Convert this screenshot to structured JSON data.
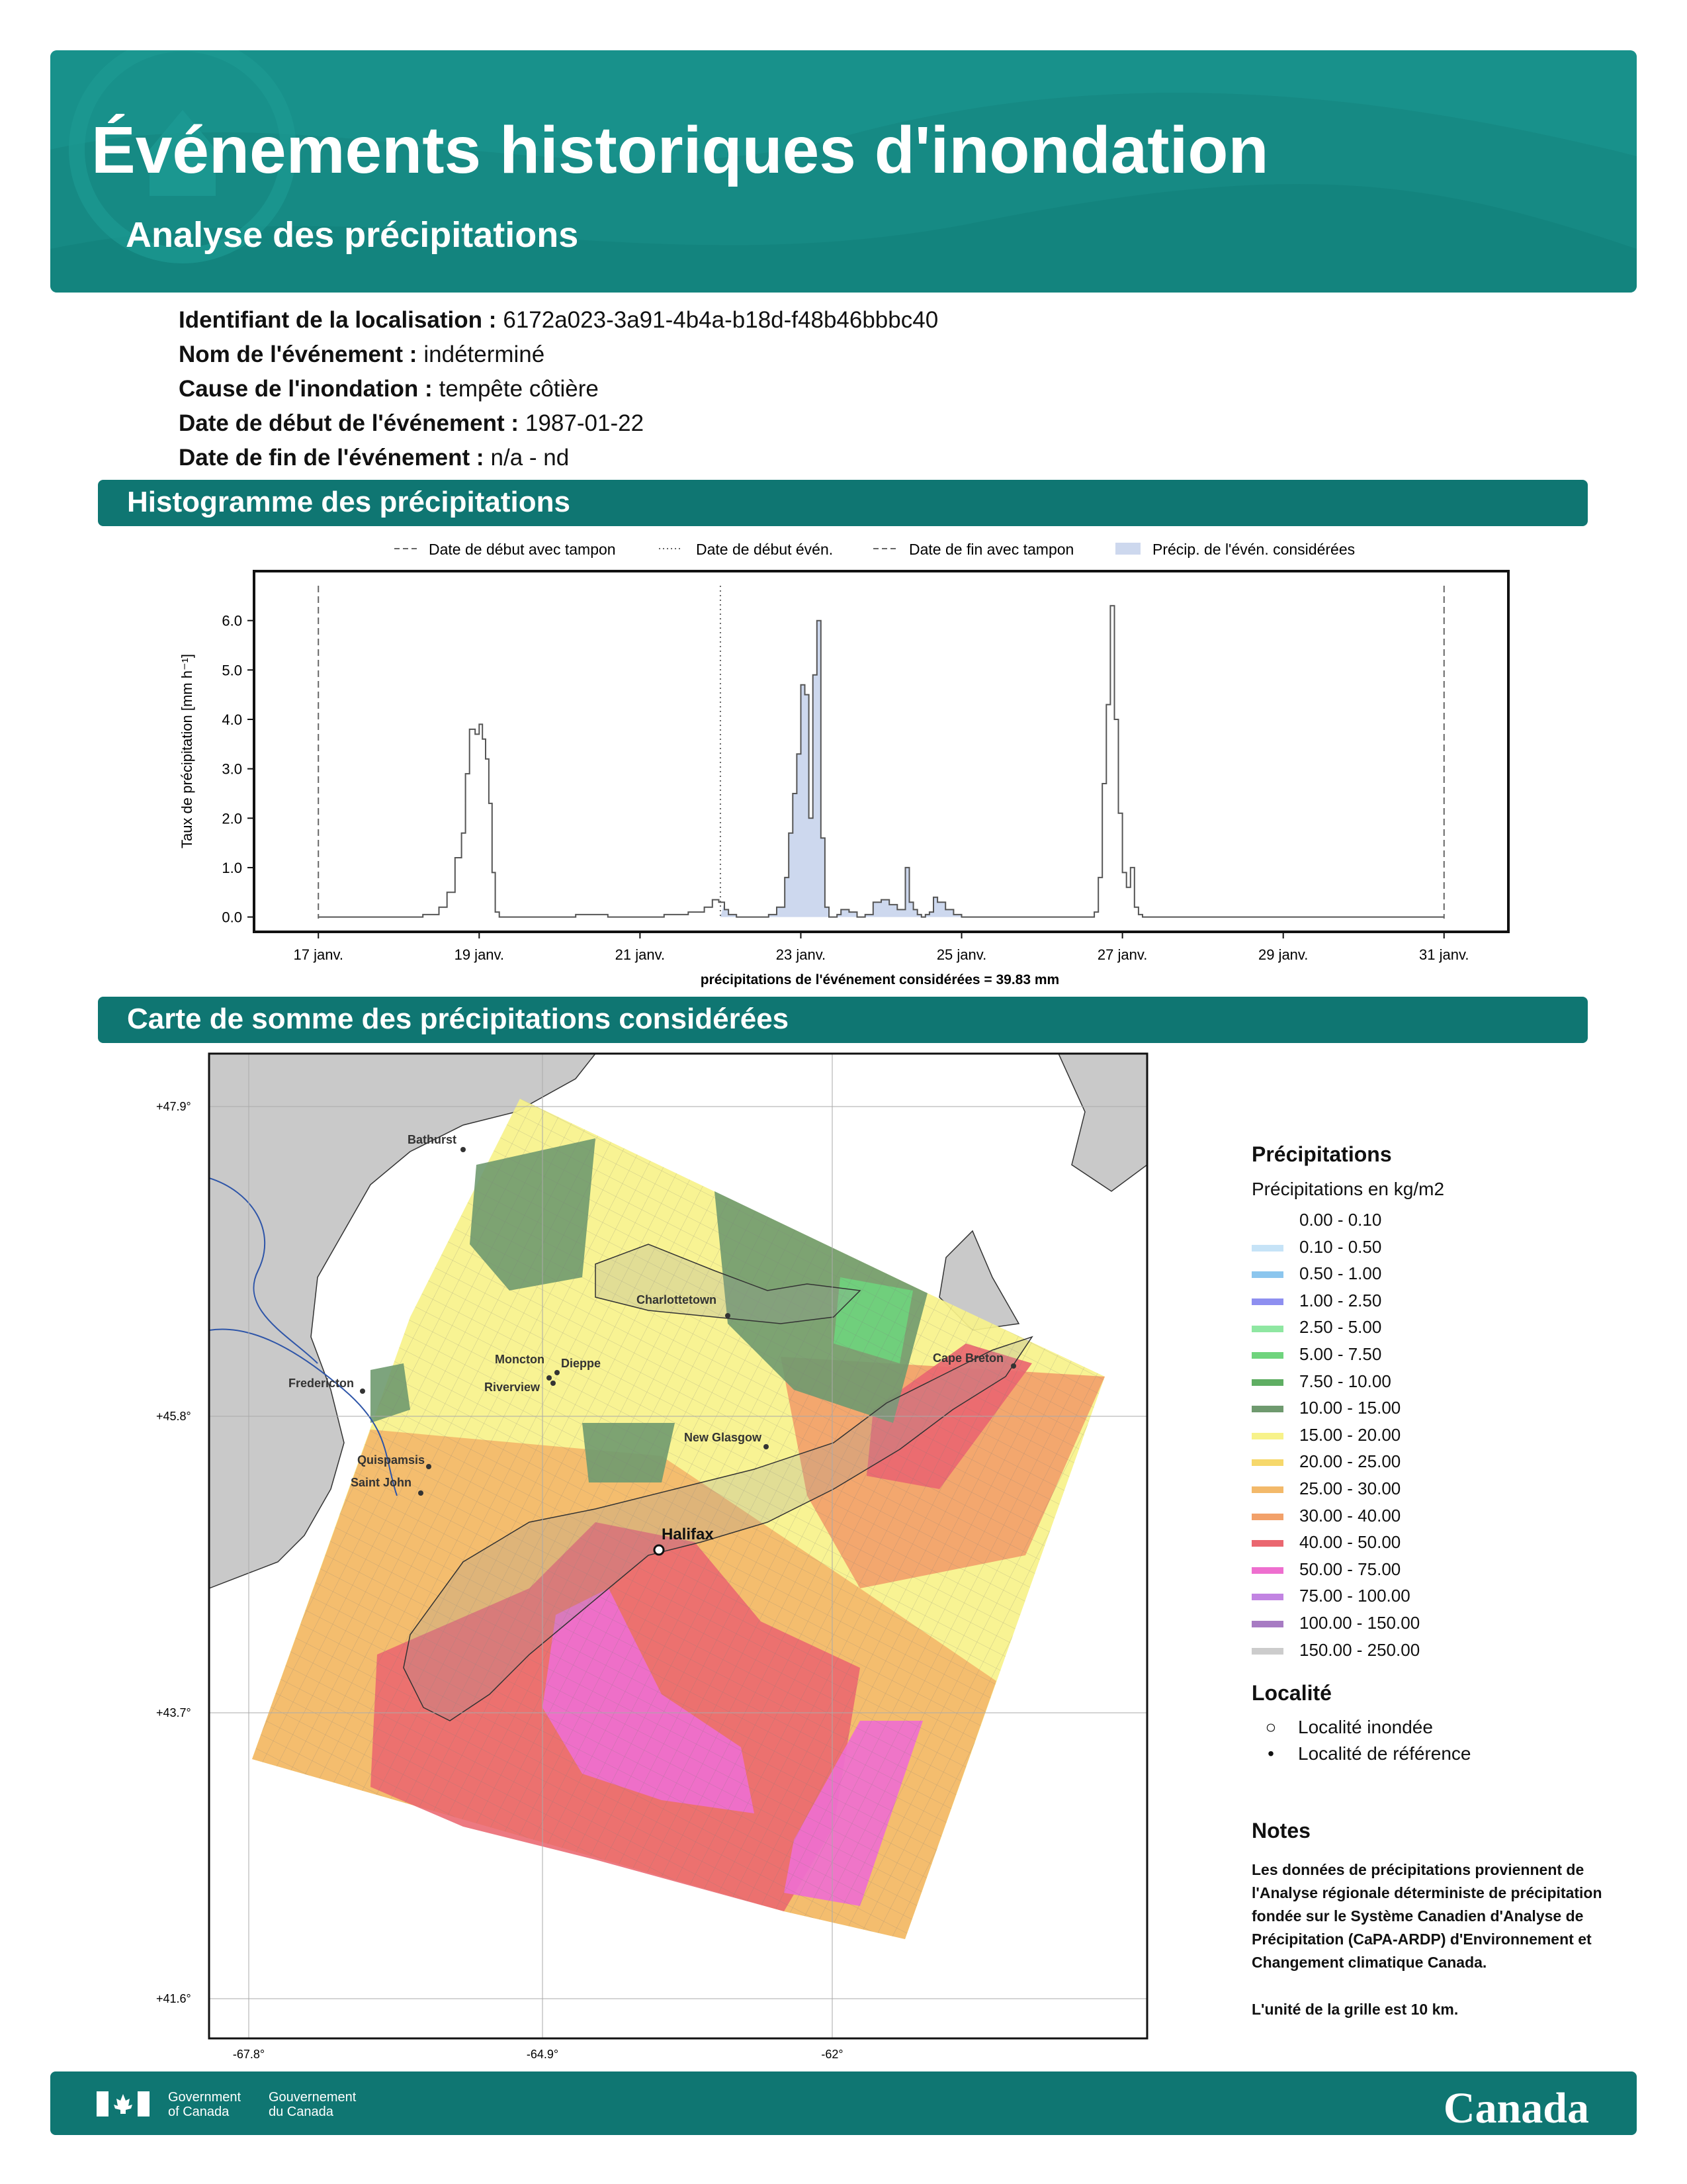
{
  "header": {
    "title": "Événements historiques d'inondation",
    "subtitle": "Analyse des précipitations"
  },
  "event": {
    "rows": [
      {
        "label": "Identifiant de la localisation :",
        "value": "6172a023-3a91-4b4a-b18d-f48b46bbbc40"
      },
      {
        "label": "Nom de l'événement :",
        "value": "indéterminé"
      },
      {
        "label": "Cause de l'inondation :",
        "value": "tempête côtière"
      },
      {
        "label": "Date de début de l'événement :",
        "value": "1987-01-22"
      },
      {
        "label": "Date de fin de l'événement :",
        "value": "n/a - nd"
      }
    ]
  },
  "sections": {
    "histogram": "Histogramme des précipitations",
    "map": "Carte de somme des précipitations considérées"
  },
  "chart_data": {
    "type": "area",
    "ylabel": "Taux de précipitation [mm h⁻¹]",
    "xlabel": "précipitations de l'événement considérées = 39.83 mm",
    "ylim": [
      -0.3,
      7.0
    ],
    "xlim": [
      16.2,
      31.8
    ],
    "yticks": [
      "0.0",
      "1.0",
      "2.0",
      "3.0",
      "4.0",
      "5.0",
      "6.0"
    ],
    "xticks": [
      {
        "x": 17,
        "label": "17 janv."
      },
      {
        "x": 19,
        "label": "19 janv."
      },
      {
        "x": 21,
        "label": "21 janv."
      },
      {
        "x": 23,
        "label": "23 janv."
      },
      {
        "x": 25,
        "label": "25 janv."
      },
      {
        "x": 27,
        "label": "27 janv."
      },
      {
        "x": 29,
        "label": "29 janv."
      },
      {
        "x": 31,
        "label": "31 janv."
      }
    ],
    "legend": [
      {
        "label": "Date de début avec tampon",
        "style": "dashed"
      },
      {
        "label": "Date de début évén.",
        "style": "dotted"
      },
      {
        "label": "Date de fin avec tampon",
        "style": "dashed"
      },
      {
        "label": "Précip. de l'évén. considérées",
        "style": "fill"
      }
    ],
    "markers": {
      "buffer_start": 17.0,
      "event_start": 22.0,
      "buffer_end": 31.0
    },
    "event_window": [
      22.0,
      25.0
    ],
    "series": [
      {
        "x": [
          17.0,
          18.0,
          18.3,
          18.5,
          18.6,
          18.7,
          18.78,
          18.83,
          18.88,
          18.95,
          19.0,
          19.04,
          19.08,
          19.12,
          19.16,
          19.2,
          19.25,
          19.3,
          19.35,
          19.4,
          19.5,
          19.8,
          20.2,
          20.6,
          21.0,
          21.3,
          21.6,
          21.8,
          21.9,
          21.98,
          22.05,
          22.1,
          22.2,
          22.4,
          22.6,
          22.7,
          22.8,
          22.85,
          22.9,
          22.95,
          23.0,
          23.05,
          23.1,
          23.15,
          23.2,
          23.25,
          23.3,
          23.35,
          23.4,
          23.45,
          23.5,
          23.6,
          23.7,
          23.8,
          23.9,
          24.0,
          24.1,
          24.2,
          24.3,
          24.35,
          24.4,
          24.45,
          24.5,
          24.55,
          24.6,
          24.65,
          24.7,
          24.8,
          24.9,
          25.0,
          25.05,
          25.1,
          25.2,
          25.4,
          25.8,
          26.2,
          26.5,
          26.6,
          26.65,
          26.7,
          26.75,
          26.8,
          26.85,
          26.9,
          26.95,
          27.0,
          27.05,
          27.1,
          27.15,
          27.2,
          27.25,
          27.3,
          27.4,
          27.6,
          28.0,
          29.0,
          30.0,
          31.0
        ],
        "y": [
          0.0,
          0.0,
          0.05,
          0.2,
          0.5,
          1.2,
          1.7,
          2.9,
          3.8,
          3.7,
          3.9,
          3.6,
          3.2,
          2.3,
          0.9,
          0.1,
          0.0,
          0.0,
          0.0,
          0.0,
          0.0,
          0.0,
          0.05,
          0.0,
          0.0,
          0.05,
          0.1,
          0.2,
          0.35,
          0.3,
          0.15,
          0.05,
          0.0,
          0.0,
          0.05,
          0.2,
          0.8,
          1.7,
          2.5,
          3.3,
          4.7,
          4.5,
          2.0,
          4.9,
          6.0,
          1.6,
          0.2,
          0.0,
          0.0,
          0.05,
          0.15,
          0.1,
          0.0,
          0.05,
          0.3,
          0.35,
          0.25,
          0.15,
          1.0,
          0.3,
          0.15,
          0.05,
          0.0,
          0.05,
          0.1,
          0.4,
          0.3,
          0.15,
          0.05,
          0.0,
          0.0,
          0.0,
          0.0,
          0.0,
          0.0,
          0.0,
          0.0,
          0.0,
          0.1,
          0.8,
          2.7,
          4.3,
          6.3,
          4.0,
          2.1,
          0.9,
          0.6,
          1.0,
          0.2,
          0.05,
          0.0,
          0.0,
          0.0,
          0.0,
          0.0,
          0.0,
          0.0,
          0.0
        ]
      }
    ]
  },
  "map": {
    "lat_labels": [
      "+47.9°",
      "+45.8°",
      "+43.7°",
      "+41.6°"
    ],
    "lon_labels": [
      "-67.8°",
      "-64.9°",
      "-62°"
    ],
    "cities": [
      {
        "name": "Bathurst"
      },
      {
        "name": "Charlottetown"
      },
      {
        "name": "Cape Breton"
      },
      {
        "name": "Moncton"
      },
      {
        "name": "Dieppe"
      },
      {
        "name": "Riverview"
      },
      {
        "name": "Fredericton"
      },
      {
        "name": "New Glasgow"
      },
      {
        "name": "Quispamsis"
      },
      {
        "name": "Saint John"
      },
      {
        "name": "Halifax"
      }
    ]
  },
  "legend": {
    "title": "Précipitations",
    "subtitle": "Précipitations en kg/m2",
    "bins": [
      {
        "label": "0.00 - 0.10",
        "color": "#ffffff"
      },
      {
        "label": "0.10 - 0.50",
        "color": "#c6e3f7"
      },
      {
        "label": "0.50 - 1.00",
        "color": "#8cc6ee"
      },
      {
        "label": "1.00 - 2.50",
        "color": "#8e8ff0"
      },
      {
        "label": "2.50 - 5.00",
        "color": "#8fe7a2"
      },
      {
        "label": "5.00 - 7.50",
        "color": "#6fd47d"
      },
      {
        "label": "7.50 - 10.00",
        "color": "#5fae63"
      },
      {
        "label": "10.00 - 15.00",
        "color": "#6f9a6f"
      },
      {
        "label": "15.00 - 20.00",
        "color": "#f7f28a"
      },
      {
        "label": "20.00 - 25.00",
        "color": "#f6d86b"
      },
      {
        "label": "25.00 - 30.00",
        "color": "#f3b96a"
      },
      {
        "label": "30.00 - 40.00",
        "color": "#f2a16a"
      },
      {
        "label": "40.00 - 50.00",
        "color": "#ea6770"
      },
      {
        "label": "50.00 - 75.00",
        "color": "#ee6fcf"
      },
      {
        "label": "75.00 - 100.00",
        "color": "#c284e2"
      },
      {
        "label": "100.00 - 150.00",
        "color": "#a77bc3"
      },
      {
        "label": "150.00 - 250.00",
        "color": "#cccccc"
      }
    ],
    "locality_title": "Localité",
    "locality_flooded": "Localité inondée",
    "locality_reference": "Localité de référence"
  },
  "notes": {
    "title": "Notes",
    "text1": "Les données de précipitations proviennent de l'Analyse régionale déterministe de précipitation fondée sur le Système Canadien d'Analyse de Précipitation (CaPA-ARDP) d'Environnement et Changement climatique Canada.",
    "text2": "L'unité de la grille est 10 km."
  },
  "footer": {
    "gov_en": "Government\nof Canada",
    "gov_fr": "Gouvernement\ndu Canada",
    "wordmark": "Canada"
  }
}
